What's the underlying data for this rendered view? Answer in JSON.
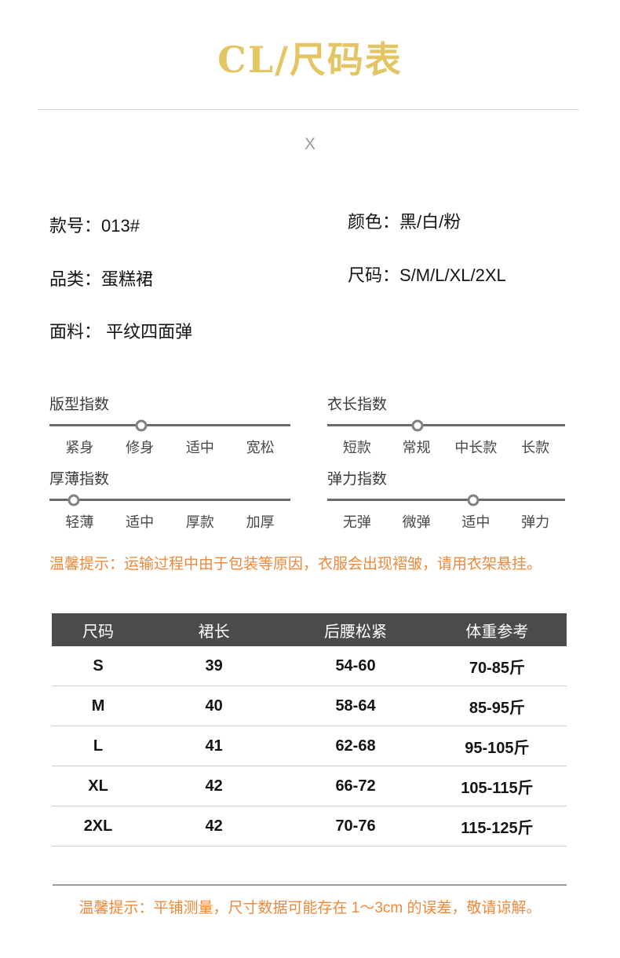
{
  "title": "CL/尺码表",
  "watermark": "X",
  "product_info": {
    "model": "款号：013#",
    "color": "颜色：黑/白/粉",
    "category": "品类：蛋糕裙",
    "sizes": "尺码：S/M/L/XL/2XL",
    "fabric": "面料： 平纹四面弹"
  },
  "sliders": [
    {
      "title": "版型指数",
      "labels": [
        "紧身",
        "修身",
        "适中",
        "宽松"
      ],
      "knob_percent": 38,
      "selected": "修身"
    },
    {
      "title": "衣长指数",
      "labels": [
        "短款",
        "常规",
        "中长款",
        "长款"
      ],
      "knob_percent": 38,
      "selected": "常规"
    },
    {
      "title": "厚薄指数",
      "labels": [
        "轻薄",
        "适中",
        "厚款",
        "加厚"
      ],
      "knob_percent": 10,
      "selected": "轻薄"
    },
    {
      "title": "弹力指数",
      "labels": [
        "无弹",
        "微弹",
        "适中",
        "弹力"
      ],
      "knob_percent": 61.5,
      "selected": "适中"
    }
  ],
  "notice_top": "温馨提示：运输过程中由于包装等原因，衣服会出现褶皱，请用衣架悬挂。",
  "notice_bottom": "温馨提示：平铺测量，尺寸数据可能存在 1～3cm 的误差，敬请谅解。",
  "size_table": {
    "columns": [
      "尺码",
      "裙长",
      "后腰松紧",
      "体重参考"
    ],
    "rows": [
      [
        "S",
        "39",
        "54-60",
        "70-85斤"
      ],
      [
        "M",
        "40",
        "58-64",
        "85-95斤"
      ],
      [
        "L",
        "41",
        "62-68",
        "95-105斤"
      ],
      [
        "XL",
        "42",
        "66-72",
        "105-115斤"
      ],
      [
        "2XL",
        "42",
        "70-76",
        "115-125斤"
      ]
    ]
  },
  "colors": {
    "accent_gold": "#e3c563",
    "notice_orange": "#f0883a",
    "table_header_bg": "#4b4b4b",
    "slider_track": "#6b6b6b"
  }
}
